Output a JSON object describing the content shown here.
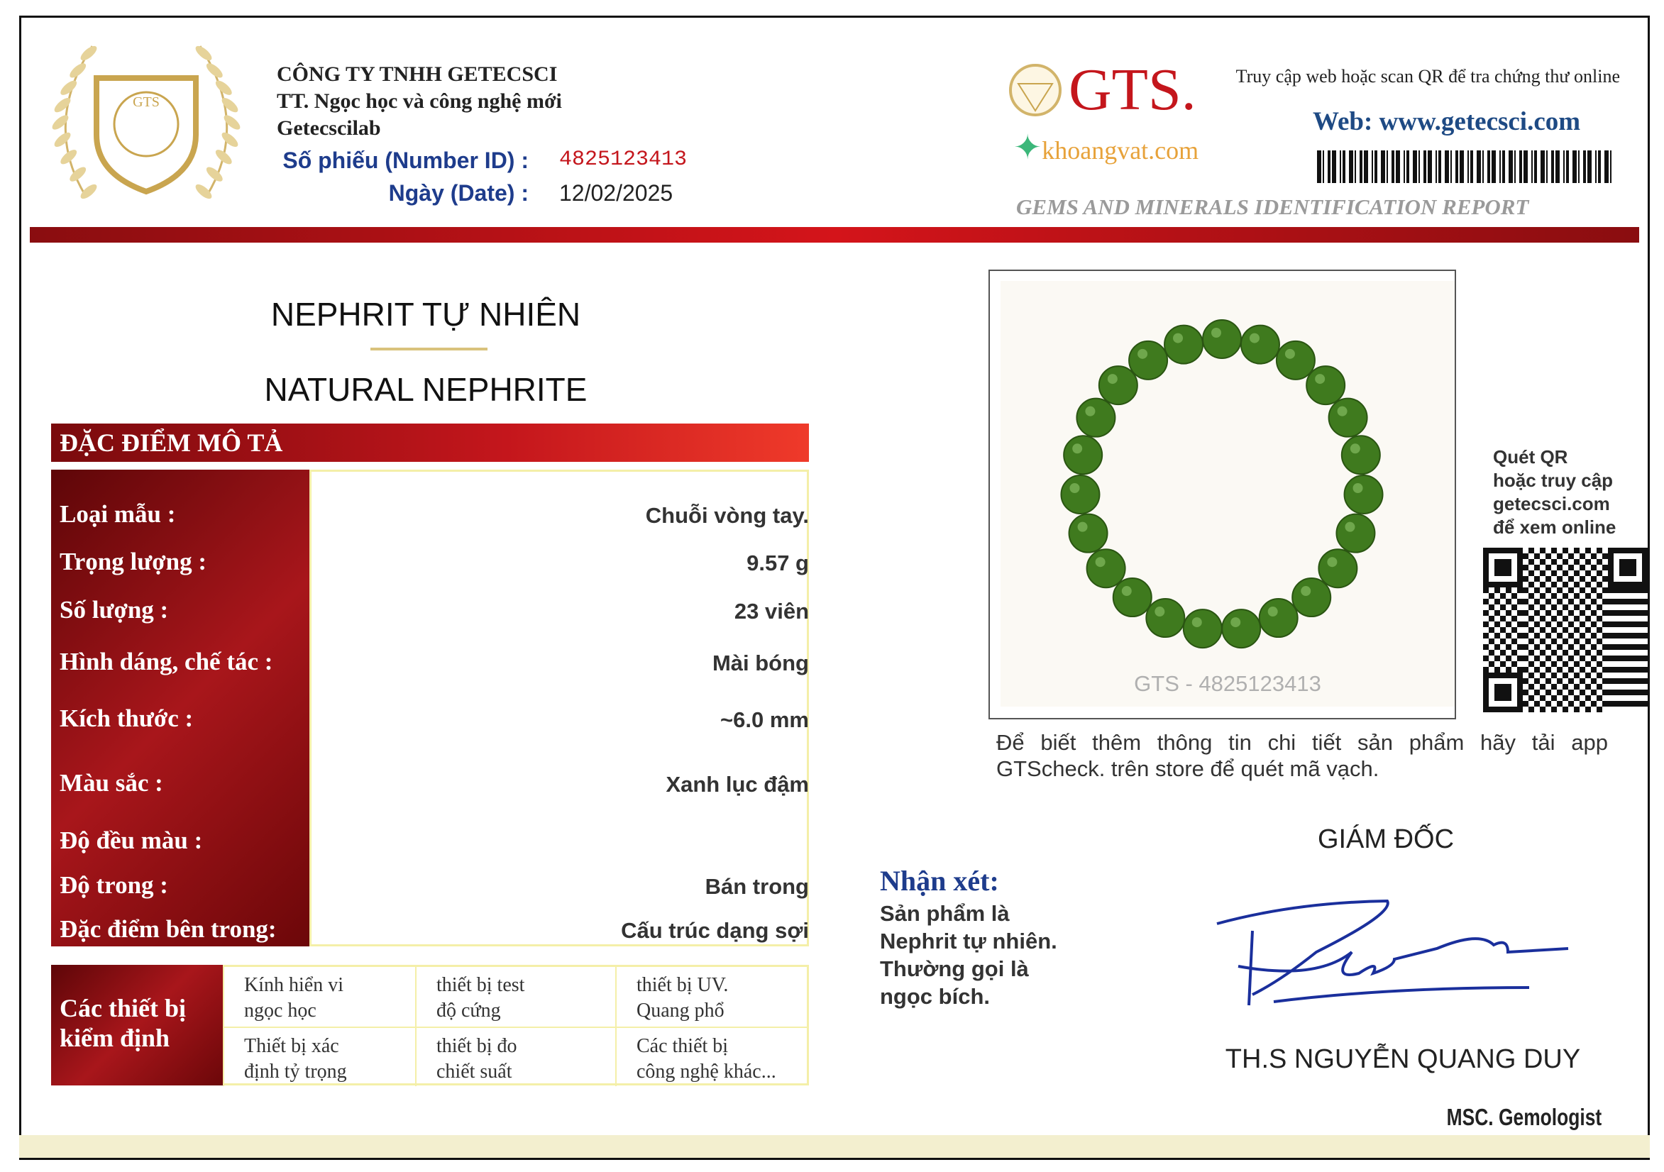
{
  "header": {
    "company_lines": [
      "CÔNG TY  TNHH GETECSCI",
      "TT. Ngọc học và công nghệ mới",
      "Getecscilab"
    ],
    "logo_text": "GTS",
    "number_label": "Số phiếu (Number ID) :",
    "number_value": "4825123413",
    "date_label": "Ngày (Date) :",
    "date_value": "12/02/2025",
    "brand": "GTS.",
    "partner_logo": "khoangvat.com",
    "lookup_text": "Truy cập web hoặc scan QR để tra chứng thư online",
    "web": "Web: www.getecsci.com",
    "report_title": "GEMS AND MINERALS IDENTIFICATION REPORT"
  },
  "product": {
    "name_vi": "NEPHRIT TỰ NHIÊN",
    "name_en": "NATURAL NEPHRITE"
  },
  "section_title": "ĐẶC ĐIỂM MÔ TẢ",
  "properties": [
    {
      "label": "Loại mẫu :",
      "value": "Chuỗi vòng tay."
    },
    {
      "label": "Trọng lượng :",
      "value": "9.57 g"
    },
    {
      "label": "Số lượng :",
      "value": "23 viên"
    },
    {
      "label": "Hình dáng, chế tác :",
      "value": "Mài bóng"
    },
    {
      "label": "Kích thước :",
      "value": "~6.0 mm"
    },
    {
      "label": "Màu sắc :",
      "value": "Xanh lục đậm"
    },
    {
      "label": "Độ đều màu :",
      "value": ""
    },
    {
      "label": "Độ trong :",
      "value": "Bán trong"
    },
    {
      "label": "Đặc điểm bên trong:",
      "value": "Cấu trúc dạng sợi"
    }
  ],
  "equipment": {
    "title": "Các thiết bị kiểm định",
    "items": [
      [
        "Kính hiển vi",
        "ngọc học"
      ],
      [
        "thiết bị test",
        "độ cứng"
      ],
      [
        "thiết bị  UV.",
        "Quang phổ"
      ],
      [
        "Thiết bị xác",
        "định tỷ trọng"
      ],
      [
        "thiết bị  đo",
        "chiết suất"
      ],
      [
        "Các thiết bị",
        "công nghệ khác..."
      ]
    ]
  },
  "photo": {
    "caption": "GTS - 4825123413",
    "bead_count": 23,
    "bead_color": "#3f7a1e"
  },
  "app_note": "Để biết thêm thông tin chi tiết sản phẩm hãy tải app GTScheck. trên store để quét mã vạch.",
  "qr_note": [
    "Quét QR",
    "hoặc truy cập",
    "getecsci.com",
    "để xem online"
  ],
  "remark": {
    "title": "Nhận xét:",
    "lines": [
      "Sản phẩm là",
      "Nephrit  tự nhiên.",
      "Thường gọi là",
      "ngọc bích."
    ]
  },
  "signer": {
    "role": "GIÁM ĐỐC",
    "name": "TH.S NGUYỄN QUANG DUY",
    "title": "MSC. Gemologist"
  },
  "colors": {
    "red": "#c4161c",
    "navy": "#1e3c8c",
    "gold": "#d9c27c"
  }
}
